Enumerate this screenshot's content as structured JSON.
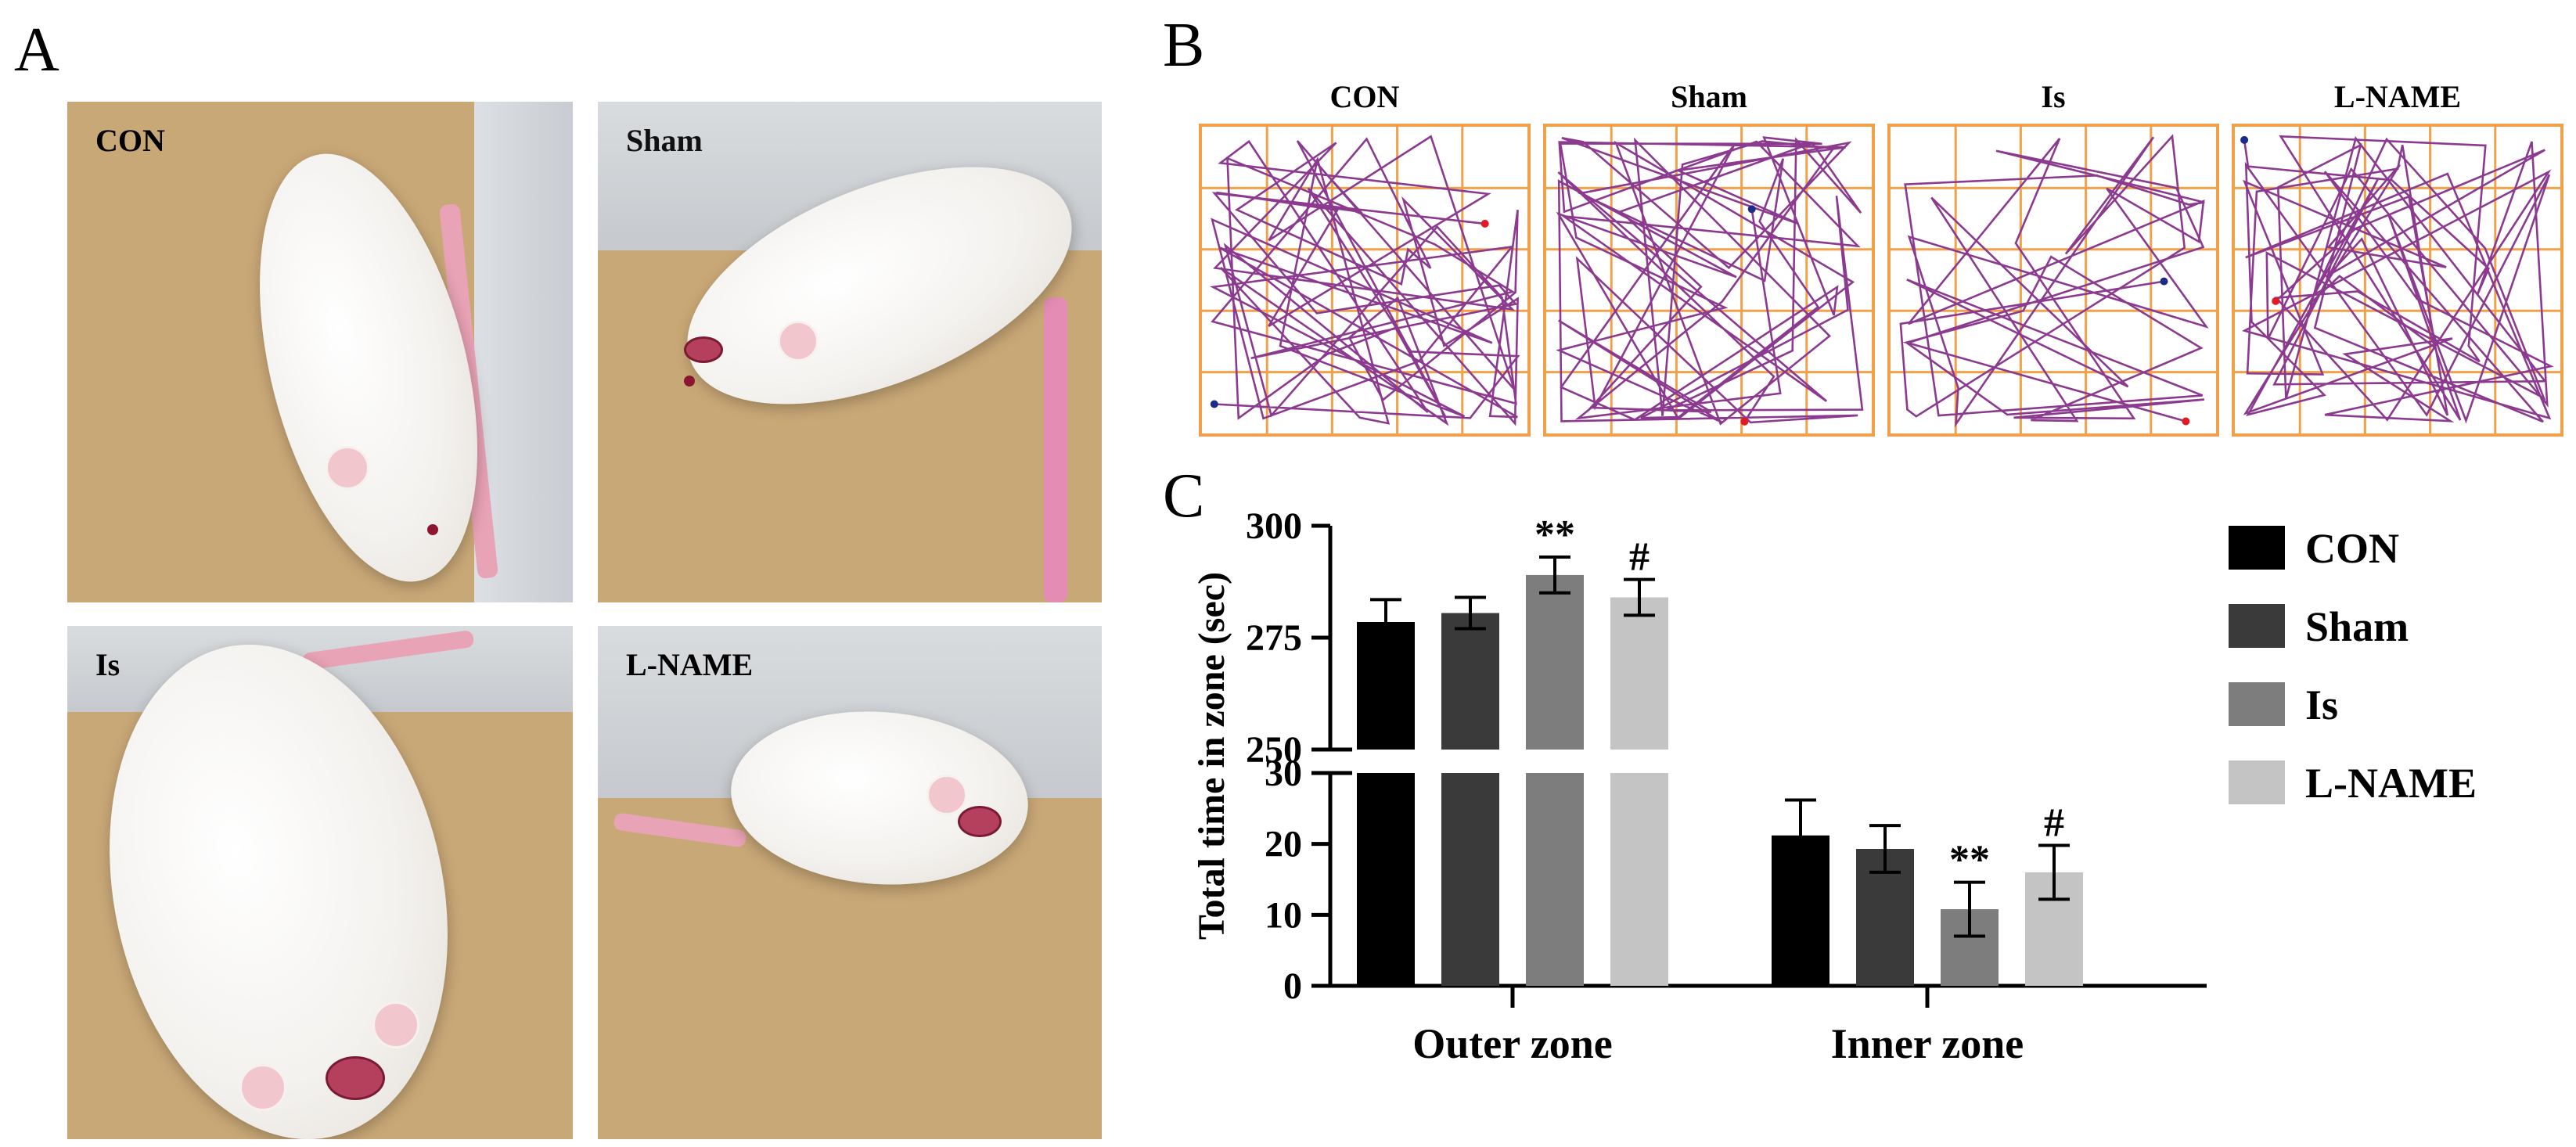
{
  "panels": {
    "a": "A",
    "b": "B",
    "c": "C"
  },
  "photos": [
    {
      "label": "CON"
    },
    {
      "label": "Sham"
    },
    {
      "label": "Is"
    },
    {
      "label": "L-NAME"
    }
  ],
  "arenas": [
    {
      "label": "CON"
    },
    {
      "label": "Sham"
    },
    {
      "label": "Is"
    },
    {
      "label": "L-NAME"
    }
  ],
  "colors": {
    "arena_grid": "#f2a14a",
    "track": "#8b3a8f",
    "CON": "#000000",
    "Sham": "#3a3a3a",
    "Is": "#7d7d7d",
    "L-NAME": "#c4c4c4"
  },
  "chart_data": {
    "type": "bar",
    "title": "",
    "ylabel": "Total time in zone (sec)",
    "xlabel": "",
    "categories": [
      "Outer zone",
      "Inner zone"
    ],
    "series": [
      {
        "name": "CON",
        "values": [
          278.5,
          21.2
        ],
        "errors": [
          5.0,
          5.0
        ]
      },
      {
        "name": "Sham",
        "values": [
          280.5,
          19.3
        ],
        "errors": [
          3.5,
          3.3
        ]
      },
      {
        "name": "Is",
        "values": [
          289.0,
          10.8
        ],
        "errors": [
          4.0,
          3.8
        ]
      },
      {
        "name": "L-NAME",
        "values": [
          284.0,
          16.0
        ],
        "errors": [
          4.0,
          3.8
        ]
      }
    ],
    "significance": [
      [
        "",
        ""
      ],
      [
        "",
        ""
      ],
      [
        "**",
        "**"
      ],
      [
        "#",
        "#"
      ]
    ],
    "axis_break": {
      "upper": {
        "ylim": [
          250,
          300
        ],
        "ticks": [
          250,
          275,
          300
        ]
      },
      "lower": {
        "ylim": [
          0,
          30
        ],
        "ticks": [
          0,
          10,
          20,
          30
        ]
      }
    },
    "legend": [
      "CON",
      "Sham",
      "Is",
      "L-NAME"
    ],
    "legend_position": "right",
    "grid": false
  }
}
